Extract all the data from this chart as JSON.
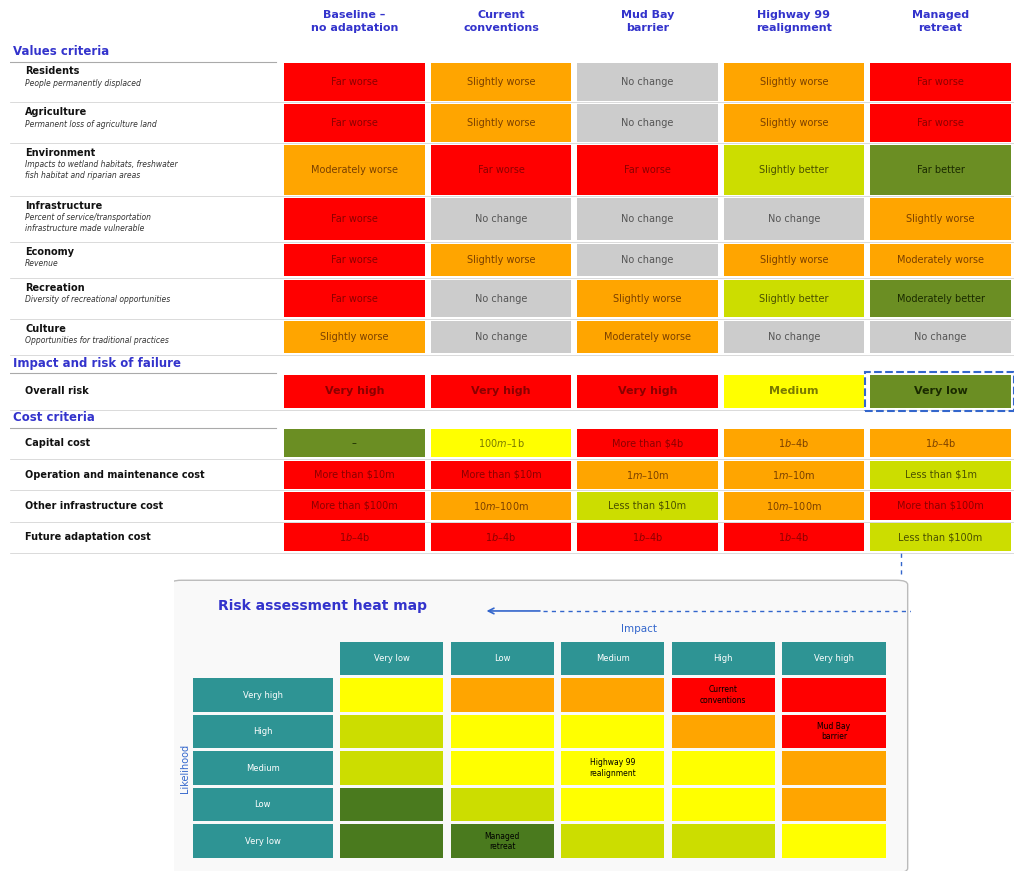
{
  "title_color": "#3333cc",
  "bg_color": "#ffffff",
  "columns": [
    "Baseline –\nno adaptation",
    "Current\nconventions",
    "Mud Bay\nbarrier",
    "Highway 99\nrealignment",
    "Managed\nretreat"
  ],
  "col_header_color": "#3333cc",
  "section_headers": {
    "values_criteria": "Values criteria",
    "impact_risk": "Impact and risk of failure",
    "cost_criteria": "Cost criteria"
  },
  "values_rows": [
    {
      "label": "Residents",
      "sublabel": "People permanently displaced",
      "cells": [
        {
          "text": "Far worse",
          "bg": "#ff0000",
          "fg": "#8b0000"
        },
        {
          "text": "Slightly worse",
          "bg": "#ffa500",
          "fg": "#7a4000"
        },
        {
          "text": "No change",
          "bg": "#cccccc",
          "fg": "#555555"
        },
        {
          "text": "Slightly worse",
          "bg": "#ffa500",
          "fg": "#7a4000"
        },
        {
          "text": "Far worse",
          "bg": "#ff0000",
          "fg": "#8b0000"
        }
      ]
    },
    {
      "label": "Agriculture",
      "sublabel": "Permanent loss of agriculture land",
      "cells": [
        {
          "text": "Far worse",
          "bg": "#ff0000",
          "fg": "#8b0000"
        },
        {
          "text": "Slightly worse",
          "bg": "#ffa500",
          "fg": "#7a4000"
        },
        {
          "text": "No change",
          "bg": "#cccccc",
          "fg": "#555555"
        },
        {
          "text": "Slightly worse",
          "bg": "#ffa500",
          "fg": "#7a4000"
        },
        {
          "text": "Far worse",
          "bg": "#ff0000",
          "fg": "#8b0000"
        }
      ]
    },
    {
      "label": "Environment",
      "sublabel": "Impacts to wetland habitats, freshwater\nfish habitat and riparian areas",
      "cells": [
        {
          "text": "Moderately worse",
          "bg": "#ffa500",
          "fg": "#7a4000"
        },
        {
          "text": "Far worse",
          "bg": "#ff0000",
          "fg": "#8b0000"
        },
        {
          "text": "Far worse",
          "bg": "#ff0000",
          "fg": "#8b0000"
        },
        {
          "text": "Slightly better",
          "bg": "#ccdd00",
          "fg": "#4a5000"
        },
        {
          "text": "Far better",
          "bg": "#6b8e23",
          "fg": "#1a2a00"
        }
      ]
    },
    {
      "label": "Infrastructure",
      "sublabel": "Percent of service/transportation\ninfrastructure made vulnerable",
      "cells": [
        {
          "text": "Far worse",
          "bg": "#ff0000",
          "fg": "#8b0000"
        },
        {
          "text": "No change",
          "bg": "#cccccc",
          "fg": "#555555"
        },
        {
          "text": "No change",
          "bg": "#cccccc",
          "fg": "#555555"
        },
        {
          "text": "No change",
          "bg": "#cccccc",
          "fg": "#555555"
        },
        {
          "text": "Slightly worse",
          "bg": "#ffa500",
          "fg": "#7a4000"
        }
      ]
    },
    {
      "label": "Economy",
      "sublabel": "Revenue",
      "cells": [
        {
          "text": "Far worse",
          "bg": "#ff0000",
          "fg": "#8b0000"
        },
        {
          "text": "Slightly worse",
          "bg": "#ffa500",
          "fg": "#7a4000"
        },
        {
          "text": "No change",
          "bg": "#cccccc",
          "fg": "#555555"
        },
        {
          "text": "Slightly worse",
          "bg": "#ffa500",
          "fg": "#7a4000"
        },
        {
          "text": "Moderately worse",
          "bg": "#ffa500",
          "fg": "#7a4000"
        }
      ]
    },
    {
      "label": "Recreation",
      "sublabel": "Diversity of recreational opportunities",
      "cells": [
        {
          "text": "Far worse",
          "bg": "#ff0000",
          "fg": "#8b0000"
        },
        {
          "text": "No change",
          "bg": "#cccccc",
          "fg": "#555555"
        },
        {
          "text": "Slightly worse",
          "bg": "#ffa500",
          "fg": "#7a4000"
        },
        {
          "text": "Slightly better",
          "bg": "#ccdd00",
          "fg": "#4a5000"
        },
        {
          "text": "Moderately better",
          "bg": "#6b8e23",
          "fg": "#1a2a00"
        }
      ]
    },
    {
      "label": "Culture",
      "sublabel": "Opportunities for traditional practices",
      "cells": [
        {
          "text": "Slightly worse",
          "bg": "#ffa500",
          "fg": "#7a4000"
        },
        {
          "text": "No change",
          "bg": "#cccccc",
          "fg": "#555555"
        },
        {
          "text": "Moderately worse",
          "bg": "#ffa500",
          "fg": "#7a4000"
        },
        {
          "text": "No change",
          "bg": "#cccccc",
          "fg": "#555555"
        },
        {
          "text": "No change",
          "bg": "#cccccc",
          "fg": "#555555"
        }
      ]
    }
  ],
  "risk_rows": [
    {
      "label": "Overall risk",
      "sublabel": "",
      "cells": [
        {
          "text": "Very high",
          "bg": "#ff0000",
          "fg": "#8b0000"
        },
        {
          "text": "Very high",
          "bg": "#ff0000",
          "fg": "#8b0000"
        },
        {
          "text": "Very high",
          "bg": "#ff0000",
          "fg": "#8b0000"
        },
        {
          "text": "Medium",
          "bg": "#ffff00",
          "fg": "#7a7a00"
        },
        {
          "text": "Very low",
          "bg": "#6b8e23",
          "fg": "#1a2a00"
        }
      ]
    }
  ],
  "cost_rows": [
    {
      "label": "Capital cost",
      "sublabel": "",
      "cells": [
        {
          "text": "–",
          "bg": "#6b8e23",
          "fg": "#1a2a00"
        },
        {
          "text": "$100m – $1b",
          "bg": "#ffff00",
          "fg": "#7a7a00"
        },
        {
          "text": "More than $4b",
          "bg": "#ff0000",
          "fg": "#8b0000"
        },
        {
          "text": "$1b – $4b",
          "bg": "#ffa500",
          "fg": "#7a4000"
        },
        {
          "text": "$1b – $4b",
          "bg": "#ffa500",
          "fg": "#7a4000"
        }
      ]
    },
    {
      "label": "Operation and maintenance cost",
      "sublabel": "",
      "cells": [
        {
          "text": "More than $10m",
          "bg": "#ff0000",
          "fg": "#8b0000"
        },
        {
          "text": "More than $10m",
          "bg": "#ff0000",
          "fg": "#8b0000"
        },
        {
          "text": "$1m – $10m",
          "bg": "#ffa500",
          "fg": "#7a4000"
        },
        {
          "text": "$1m – $10m",
          "bg": "#ffa500",
          "fg": "#7a4000"
        },
        {
          "text": "Less than $1m",
          "bg": "#ccdd00",
          "fg": "#4a5000"
        }
      ]
    },
    {
      "label": "Other infrastructure cost",
      "sublabel": "",
      "cells": [
        {
          "text": "More than $100m",
          "bg": "#ff0000",
          "fg": "#8b0000"
        },
        {
          "text": "$10m – $100m",
          "bg": "#ffa500",
          "fg": "#7a4000"
        },
        {
          "text": "Less than $10m",
          "bg": "#ccdd00",
          "fg": "#4a5000"
        },
        {
          "text": "$10m – $100m",
          "bg": "#ffa500",
          "fg": "#7a4000"
        },
        {
          "text": "More than $100m",
          "bg": "#ff0000",
          "fg": "#8b0000"
        }
      ]
    },
    {
      "label": "Future adaptation cost",
      "sublabel": "",
      "cells": [
        {
          "text": "$1b – $4b",
          "bg": "#ff0000",
          "fg": "#8b0000"
        },
        {
          "text": "$1b – $4b",
          "bg": "#ff0000",
          "fg": "#8b0000"
        },
        {
          "text": "$1b – $4b",
          "bg": "#ff0000",
          "fg": "#8b0000"
        },
        {
          "text": "$1b – $4b",
          "bg": "#ff0000",
          "fg": "#8b0000"
        },
        {
          "text": "Less than $100m",
          "bg": "#ccdd00",
          "fg": "#4a5000"
        }
      ]
    }
  ],
  "heatmap": {
    "title": "Risk assessment heat map",
    "title_color": "#3333cc",
    "header_bg": "#2e9494",
    "header_fg": "#ffffff",
    "impact_label": "Impact",
    "likelihood_label": "Likelihood",
    "col_labels": [
      "Very low",
      "Low",
      "Medium",
      "High",
      "Very high"
    ],
    "row_labels": [
      "Very high",
      "High",
      "Medium",
      "Low",
      "Very low"
    ],
    "grid_colors": [
      [
        "#ffff00",
        "#ffa500",
        "#ffa500",
        "#ff0000",
        "#ff0000"
      ],
      [
        "#ccdd00",
        "#ffff00",
        "#ffff00",
        "#ffa500",
        "#ff0000"
      ],
      [
        "#ccdd00",
        "#ffff00",
        "#ffff00",
        "#ffff00",
        "#ffa500"
      ],
      [
        "#4a7a1e",
        "#ccdd00",
        "#ffff00",
        "#ffff00",
        "#ffa500"
      ],
      [
        "#4a7a1e",
        "#4a7a1e",
        "#ccdd00",
        "#ccdd00",
        "#ffff00"
      ]
    ],
    "annotations": [
      {
        "row": 0,
        "col": 3,
        "text": "Current\nconventions"
      },
      {
        "row": 1,
        "col": 4,
        "text": "Mud Bay\nbarrier"
      },
      {
        "row": 2,
        "col": 2,
        "text": "Highway 99\nrealignment"
      },
      {
        "row": 4,
        "col": 1,
        "text": "Managed\nretreat"
      }
    ]
  }
}
